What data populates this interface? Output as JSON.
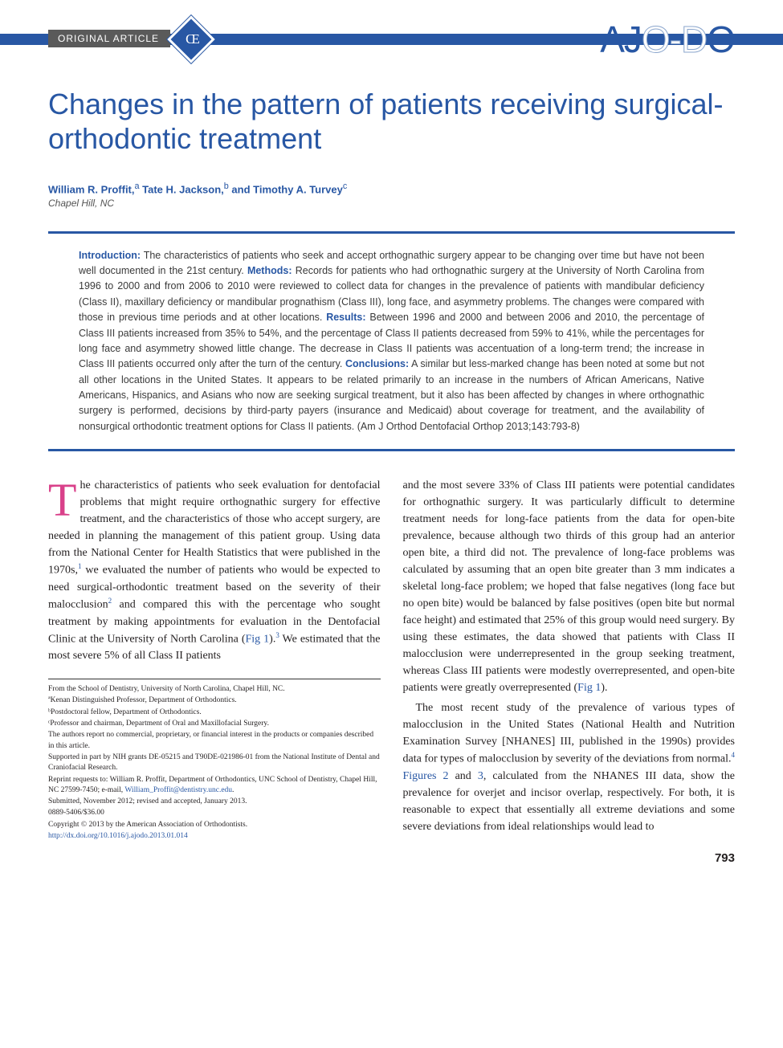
{
  "header": {
    "article_type": "ORIGINAL ARTICLE",
    "ce_badge": "CE",
    "journal_logo_pre": "AJ",
    "journal_logo_mid": "O-D",
    "journal_logo_post": "O"
  },
  "title": "Changes in the pattern of patients receiving surgical-orthodontic treatment",
  "authors_html": "William R. Proffit,<sup>a</sup> Tate H. Jackson,<sup>b</sup> and Timothy A. Turvey<sup>c</sup>",
  "affiliation": "Chapel Hill, NC",
  "abstract": {
    "intro_label": "Introduction:",
    "intro": " The characteristics of patients who seek and accept orthognathic surgery appear to be changing over time but have not been well documented in the 21st century. ",
    "methods_label": "Methods:",
    "methods": " Records for patients who had orthognathic surgery at the University of North Carolina from 1996 to 2000 and from 2006 to 2010 were reviewed to collect data for changes in the prevalence of patients with mandibular deficiency (Class II), maxillary deficiency or mandibular prognathism (Class III), long face, and asymmetry problems. The changes were compared with those in previous time periods and at other locations. ",
    "results_label": "Results:",
    "results": " Between 1996 and 2000 and between 2006 and 2010, the percentage of Class III patients increased from 35% to 54%, and the percentage of Class II patients decreased from 59% to 41%, while the percentages for long face and asymmetry showed little change. The decrease in Class II patients was accentuation of a long-term trend; the increase in Class III patients occurred only after the turn of the century. ",
    "conclusions_label": "Conclusions:",
    "conclusions": " A similar but less-marked change has been noted at some but not all other locations in the United States. It appears to be related primarily to an increase in the numbers of African Americans, Native Americans, Hispanics, and Asians who now are seeking surgical treatment, but it also has been affected by changes in where orthognathic surgery is performed, decisions by third-party payers (insurance and Medicaid) about coverage for treatment, and the availability of nonsurgical orthodontic treatment options for Class II patients. (Am J Orthod Dentofacial Orthop 2013;143:793-8)"
  },
  "body": {
    "p1_a": "he characteristics of patients who seek evaluation for dentofacial problems that might require orthognathic surgery for effective treatment, and the characteristics of those who accept surgery, are needed in planning the management of this patient group. Using data from the National Center for Health Statistics that were published in the 1970s,",
    "p1_b": " we evaluated the number of patients who would be expected to need surgical-orthodontic treatment based on the severity of their malocclusion",
    "p1_c": " and compared this with the percentage who sought treatment by making appointments for evaluation in the Dentofacial Clinic at the University of North Carolina (",
    "p1_fig": "Fig 1",
    "p1_d": ").",
    "p1_e": " We estimated that the most severe 5% of all Class II patients ",
    "p2_a": "and the most severe 33% of Class III patients were potential candidates for orthognathic surgery. It was particularly difficult to determine treatment needs for long-face patients from the data for open-bite prevalence, because although two thirds of this group had an anterior open bite, a third did not. The prevalence of long-face problems was calculated by assuming that an open bite greater than 3 mm indicates a skeletal long-face problem; we hoped that false negatives (long face but no open bite) would be balanced by false positives (open bite but normal face height) and estimated that 25% of this group would need surgery. By using these estimates, the data showed that patients with Class II malocclusion were underrepresented in the group seeking treatment, whereas Class III patients were modestly overrepresented, and open-bite patients were greatly overrepresented (",
    "p2_fig": "Fig 1",
    "p2_b": ").",
    "p3_a": "The most recent study of the prevalence of various types of malocclusion in the United States (National Health and Nutrition Examination Survey [NHANES] III, published in the 1990s) provides data for types of malocclusion by severity of the deviations from normal.",
    "p3_b": "Figures 2",
    "p3_c": " and ",
    "p3_d": "3",
    "p3_e": ", calculated from the NHANES III data, show the prevalence for overjet and incisor overlap, respectively. For both, it is reasonable to expect that essentially all extreme deviations and some severe deviations from ideal relationships would lead to"
  },
  "footnotes": {
    "f1": "From the School of Dentistry, University of North Carolina, Chapel Hill, NC.",
    "f2": "ªKenan Distinguished Professor, Department of Orthodontics.",
    "f3": "ᵇPostdoctoral fellow, Department of Orthodontics.",
    "f4": "ᶜProfessor and chairman, Department of Oral and Maxillofacial Surgery.",
    "f5": "The authors report no commercial, proprietary, or financial interest in the products or companies described in this article.",
    "f6": "Supported in part by NIH grants DE-05215 and T90DE-021986-01 from the National Institute of Dental and Craniofacial Research.",
    "f7a": "Reprint requests to: William R. Proffit, Department of Orthodontics, UNC School of Dentistry, Chapel Hill, NC 27599-7450; e-mail, ",
    "f7_link": "William_Proffit@dentistry.unc.edu",
    "f7b": ".",
    "f8": "Submitted, November 2012; revised and accepted, January 2013.",
    "f9": "0889-5406/$36.00",
    "f10": "Copyright © 2013 by the American Association of Orthodontists.",
    "f11": "http://dx.doi.org/10.1016/j.ajodo.2013.01.014"
  },
  "page_number": "793"
}
